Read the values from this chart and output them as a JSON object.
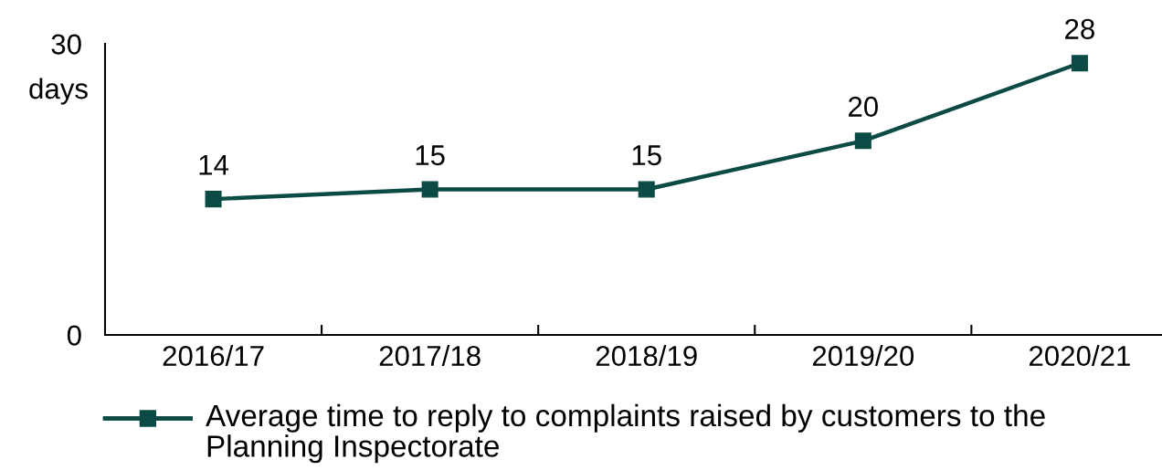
{
  "chart_data": {
    "type": "line",
    "categories": [
      "2016/17",
      "2017/18",
      "2018/19",
      "2019/20",
      "2020/21"
    ],
    "series": [
      {
        "name": "Average time to reply to complaints raised by customers to the Planning Inspectorate",
        "color": "#0b4a45",
        "values": [
          14,
          15,
          15,
          20,
          28
        ]
      }
    ],
    "ylabel": "days",
    "ylim": [
      0,
      30
    ],
    "yticks": [
      0,
      30
    ],
    "data_labels": true,
    "marker": "square",
    "line_style": "solid",
    "legend": "bottom",
    "grid": false
  }
}
